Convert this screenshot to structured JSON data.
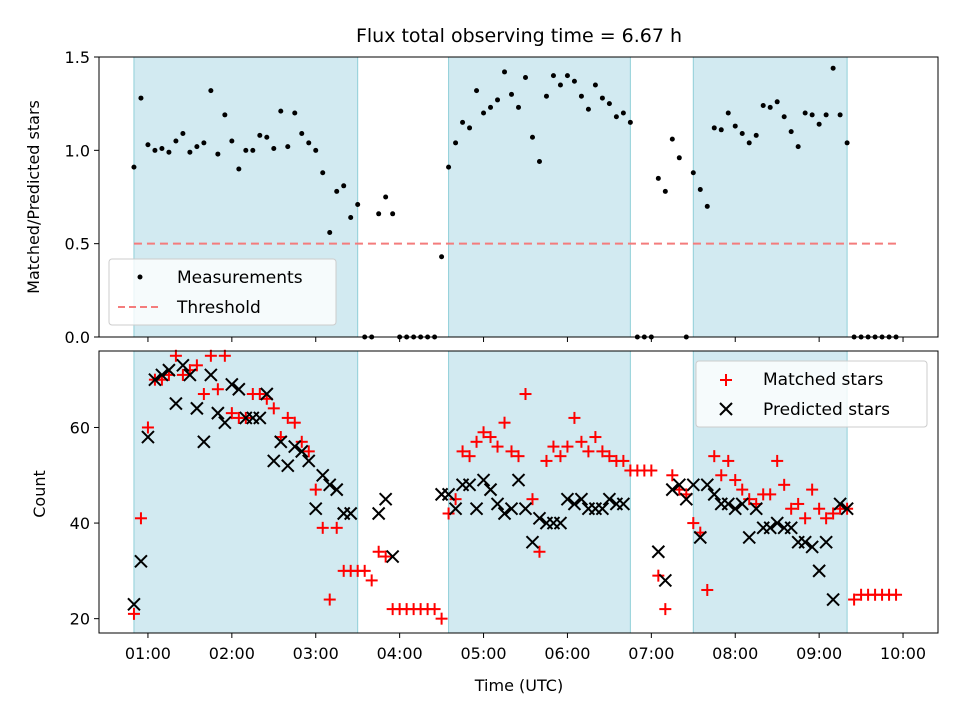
{
  "figure_title": "Flux total observing time = 6.67 h",
  "colors": {
    "band": "#add8e6",
    "band_edge": "#90cfd8",
    "measurement": "#000000",
    "threshold": "#f47c7c",
    "matched": "#ff0000",
    "predicted": "#000000",
    "axis": "#000000"
  },
  "chart_data": [
    {
      "type": "scatter",
      "title": "Flux total observing time = 6.67 h",
      "xlabel": "",
      "ylabel": "Matched/Predicted stars",
      "xlim": [
        "00:25",
        "10:25"
      ],
      "ylim": [
        0,
        1.5
      ],
      "yticks": [
        "0.0",
        "0.5",
        "1.0",
        "1.5"
      ],
      "grid": false,
      "legend_position": "lower-left",
      "shaded_intervals": [
        [
          "00:50",
          "03:30"
        ],
        [
          "04:35",
          "06:45"
        ],
        [
          "07:30",
          "09:20"
        ]
      ],
      "threshold": {
        "name": "Threshold",
        "value": 0.5,
        "x_range": [
          "00:50",
          "09:55"
        ]
      },
      "series": [
        {
          "name": "Measurements",
          "marker": "dot",
          "x": [
            "00:50",
            "00:55",
            "01:00",
            "01:05",
            "01:10",
            "01:15",
            "01:20",
            "01:25",
            "01:30",
            "01:35",
            "01:40",
            "01:45",
            "01:50",
            "01:55",
            "02:00",
            "02:05",
            "02:10",
            "02:15",
            "02:20",
            "02:25",
            "02:30",
            "02:35",
            "02:40",
            "02:45",
            "02:50",
            "02:55",
            "03:00",
            "03:05",
            "03:10",
            "03:15",
            "03:20",
            "03:25",
            "03:30",
            "03:35",
            "03:40",
            "03:45",
            "03:50",
            "03:55",
            "04:00",
            "04:05",
            "04:10",
            "04:15",
            "04:20",
            "04:25",
            "04:30",
            "04:35",
            "04:40",
            "04:45",
            "04:50",
            "04:55",
            "05:00",
            "05:05",
            "05:10",
            "05:15",
            "05:20",
            "05:25",
            "05:30",
            "05:35",
            "05:40",
            "05:45",
            "05:50",
            "05:55",
            "06:00",
            "06:05",
            "06:10",
            "06:15",
            "06:20",
            "06:25",
            "06:30",
            "06:35",
            "06:40",
            "06:45",
            "06:50",
            "06:55",
            "07:00",
            "07:05",
            "07:10",
            "07:15",
            "07:20",
            "07:25",
            "07:30",
            "07:35",
            "07:40",
            "07:45",
            "07:50",
            "07:55",
            "08:00",
            "08:05",
            "08:10",
            "08:15",
            "08:20",
            "08:25",
            "08:30",
            "08:35",
            "08:40",
            "08:45",
            "08:50",
            "08:55",
            "09:00",
            "09:05",
            "09:10",
            "09:15",
            "09:20",
            "09:25",
            "09:30",
            "09:35",
            "09:40",
            "09:45",
            "09:50",
            "09:55"
          ],
          "y": [
            0.91,
            1.28,
            1.03,
            1.0,
            1.01,
            0.99,
            1.05,
            1.09,
            0.99,
            1.02,
            1.04,
            1.32,
            0.98,
            1.19,
            1.05,
            0.9,
            1.0,
            1.0,
            1.08,
            1.07,
            1.01,
            1.21,
            1.02,
            1.2,
            1.09,
            1.04,
            1.0,
            0.88,
            0.56,
            0.78,
            0.81,
            0.64,
            0.71,
            0.0,
            0.0,
            0.66,
            0.75,
            0.66,
            0.0,
            0.0,
            0.0,
            0.0,
            0.0,
            0.0,
            0.43,
            0.91,
            1.04,
            1.15,
            1.12,
            1.32,
            1.2,
            1.23,
            1.27,
            1.42,
            1.3,
            1.23,
            1.39,
            1.07,
            0.94,
            1.29,
            1.4,
            1.35,
            1.4,
            1.37,
            1.29,
            1.22,
            1.35,
            1.28,
            1.25,
            1.18,
            1.2,
            1.15,
            0.0,
            0.0,
            0.0,
            0.85,
            0.78,
            1.06,
            0.96,
            0.0,
            0.88,
            0.79,
            0.7,
            1.12,
            1.11,
            1.2,
            1.13,
            1.09,
            1.04,
            1.08,
            1.24,
            1.23,
            1.26,
            1.18,
            1.1,
            1.02,
            1.2,
            1.19,
            1.14,
            1.19,
            1.44,
            1.19,
            1.04,
            0.0,
            0.0,
            0.0,
            0.0,
            0.0,
            0.0,
            0.0
          ]
        }
      ]
    },
    {
      "type": "scatter",
      "title": "",
      "xlabel": "Time (UTC)",
      "ylabel": "Count",
      "xlim": [
        "00:25",
        "10:25"
      ],
      "ylim": [
        17,
        76
      ],
      "yticks": [
        "20",
        "40",
        "60"
      ],
      "xticks": [
        "01:00",
        "02:00",
        "03:00",
        "04:00",
        "05:00",
        "06:00",
        "07:00",
        "08:00",
        "09:00",
        "10:00"
      ],
      "grid": false,
      "legend_position": "top-right",
      "shaded_intervals": [
        [
          "00:50",
          "03:30"
        ],
        [
          "04:35",
          "06:45"
        ],
        [
          "07:30",
          "09:20"
        ]
      ],
      "series": [
        {
          "name": "Matched stars",
          "marker": "plus",
          "x": [
            "00:50",
            "00:55",
            "01:00",
            "01:05",
            "01:10",
            "01:15",
            "01:20",
            "01:25",
            "01:30",
            "01:35",
            "01:40",
            "01:45",
            "01:50",
            "01:55",
            "02:00",
            "02:05",
            "02:10",
            "02:15",
            "02:20",
            "02:25",
            "02:30",
            "02:35",
            "02:40",
            "02:45",
            "02:50",
            "02:55",
            "03:00",
            "03:05",
            "03:10",
            "03:15",
            "03:20",
            "03:25",
            "03:30",
            "03:35",
            "03:40",
            "03:45",
            "03:50",
            "03:55",
            "04:00",
            "04:05",
            "04:10",
            "04:15",
            "04:20",
            "04:25",
            "04:30",
            "04:35",
            "04:40",
            "04:45",
            "04:50",
            "04:55",
            "05:00",
            "05:05",
            "05:10",
            "05:15",
            "05:20",
            "05:25",
            "05:30",
            "05:35",
            "05:40",
            "05:45",
            "05:50",
            "05:55",
            "06:00",
            "06:05",
            "06:10",
            "06:15",
            "06:20",
            "06:25",
            "06:30",
            "06:35",
            "06:40",
            "06:45",
            "06:50",
            "06:55",
            "07:00",
            "07:05",
            "07:10",
            "07:15",
            "07:20",
            "07:25",
            "07:30",
            "07:35",
            "07:40",
            "07:45",
            "07:50",
            "07:55",
            "08:00",
            "08:05",
            "08:10",
            "08:15",
            "08:20",
            "08:25",
            "08:30",
            "08:35",
            "08:40",
            "08:45",
            "08:50",
            "08:55",
            "09:00",
            "09:05",
            "09:10",
            "09:15",
            "09:20",
            "09:25",
            "09:30",
            "09:35",
            "09:40",
            "09:45",
            "09:50",
            "09:55"
          ],
          "y": [
            21,
            41,
            60,
            70,
            70,
            71,
            75,
            71,
            72,
            73,
            67,
            75,
            68,
            75,
            63,
            62,
            62,
            67,
            67,
            66,
            64,
            58,
            62,
            61,
            57,
            55,
            47,
            39,
            24,
            39,
            30,
            30,
            30,
            30,
            28,
            34,
            33,
            22,
            22,
            22,
            22,
            22,
            22,
            22,
            20,
            42,
            45,
            55,
            54,
            57,
            59,
            58,
            56,
            61,
            55,
            54,
            67,
            45,
            34,
            53,
            56,
            54,
            56,
            62,
            57,
            55,
            58,
            55,
            54,
            53,
            53,
            51,
            51,
            51,
            51,
            29,
            22,
            50,
            47,
            46,
            40,
            38,
            26,
            54,
            50,
            53,
            49,
            47,
            45,
            44,
            46,
            46,
            53,
            48,
            43,
            44,
            41,
            47,
            43,
            41,
            42,
            43,
            43,
            24,
            25,
            25,
            25,
            25,
            25,
            25
          ],
          "matched_placeholder": ""
        },
        {
          "name": "Predicted stars",
          "marker": "x",
          "x": [
            "00:50",
            "00:55",
            "01:00",
            "01:05",
            "01:10",
            "01:15",
            "01:20",
            "01:25",
            "01:30",
            "01:35",
            "01:40",
            "01:45",
            "01:50",
            "01:55",
            "02:00",
            "02:05",
            "02:10",
            "02:15",
            "02:20",
            "02:25",
            "02:30",
            "02:35",
            "02:40",
            "02:45",
            "02:50",
            "02:55",
            "03:00",
            "03:05",
            "03:10",
            "03:15",
            "03:20",
            "03:25",
            "03:45",
            "03:50",
            "03:55",
            "04:30",
            "04:35",
            "04:40",
            "04:45",
            "04:50",
            "04:55",
            "05:00",
            "05:05",
            "05:10",
            "05:15",
            "05:20",
            "05:25",
            "05:30",
            "05:35",
            "05:40",
            "05:45",
            "05:50",
            "05:55",
            "06:00",
            "06:05",
            "06:10",
            "06:15",
            "06:20",
            "06:25",
            "06:30",
            "06:35",
            "06:40",
            "07:05",
            "07:10",
            "07:15",
            "07:20",
            "07:25",
            "07:30",
            "07:35",
            "07:40",
            "07:45",
            "07:50",
            "07:55",
            "08:00",
            "08:05",
            "08:10",
            "08:15",
            "08:20",
            "08:25",
            "08:30",
            "08:35",
            "08:40",
            "08:45",
            "08:50",
            "08:55",
            "09:00",
            "09:05",
            "09:10",
            "09:15",
            "09:20"
          ],
          "y": [
            23,
            32,
            58,
            70,
            71,
            72,
            65,
            73,
            71,
            64,
            57,
            71,
            63,
            61,
            69,
            68,
            62,
            62,
            62,
            67,
            53,
            57,
            52,
            56,
            55,
            53,
            43,
            50,
            48,
            47,
            42,
            42,
            42,
            45,
            33,
            46,
            46,
            43,
            48,
            48,
            43,
            49,
            47,
            44,
            42,
            43,
            49,
            43,
            36,
            41,
            40,
            40,
            40,
            45,
            44,
            45,
            43,
            43,
            43,
            45,
            44,
            44,
            34,
            28,
            47,
            48,
            45,
            48,
            37,
            48,
            46,
            44,
            44,
            43,
            44,
            37,
            43,
            39,
            39,
            40,
            39,
            39,
            36,
            36,
            35,
            30,
            36,
            24,
            44,
            43
          ],
          "predicted_placeholder": ""
        }
      ]
    }
  ]
}
